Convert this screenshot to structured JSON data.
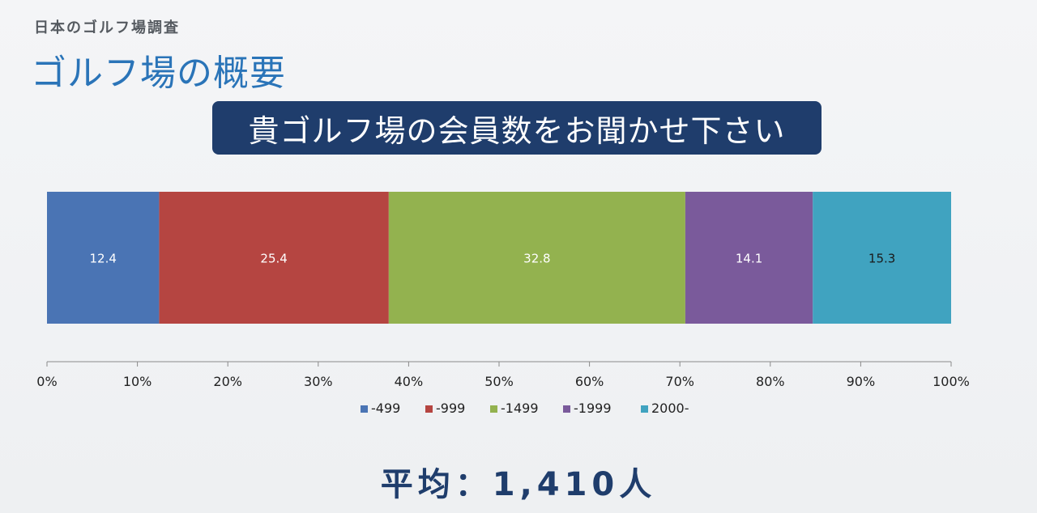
{
  "header": {
    "super_title": "日本のゴルフ場調査",
    "title": "ゴルフ場の概要"
  },
  "question": "貴ゴルフ場の会員数をお聞かせ下さい",
  "chart_data": {
    "type": "bar",
    "orientation": "horizontal-stacked-100",
    "categories": [
      ""
    ],
    "series": [
      {
        "name": "-499",
        "values": [
          12.4
        ],
        "color": "#4a74b4",
        "label_color": "#ffffff"
      },
      {
        "name": "-999",
        "values": [
          25.4
        ],
        "color": "#b54541",
        "label_color": "#ffffff"
      },
      {
        "name": "-1499",
        "values": [
          32.8
        ],
        "color": "#93b24f",
        "label_color": "#ffffff"
      },
      {
        "name": "-1999",
        "values": [
          14.1
        ],
        "color": "#7a5a9b",
        "label_color": "#ffffff"
      },
      {
        "name": "2000-",
        "values": [
          15.3
        ],
        "color": "#40a3c0",
        "label_color": "#1a1a1a"
      }
    ],
    "xlim": [
      0,
      100
    ],
    "xticks": [
      "0%",
      "10%",
      "20%",
      "30%",
      "40%",
      "50%",
      "60%",
      "70%",
      "80%",
      "90%",
      "100%"
    ],
    "legend_position": "bottom",
    "grid": false
  },
  "summary": {
    "average_label": "平均：1,410人"
  }
}
